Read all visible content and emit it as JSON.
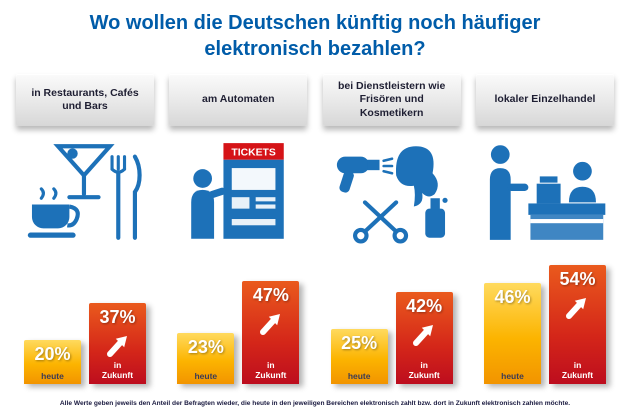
{
  "title": {
    "line1": "Wo wollen die Deutschen künftig noch häufiger",
    "line2": "elektronisch bezahlen?"
  },
  "legend": {
    "today": "heute",
    "future": "in Zukunft"
  },
  "columns": [
    {
      "label": "in Restaurants, Cafés und Bars",
      "today_value": "20%",
      "future_value": "37%"
    },
    {
      "label": "am Automaten",
      "today_value": "23%",
      "future_value": "47%",
      "machine_label": "TICKETS"
    },
    {
      "label": "bei Dienstleistern wie Frisören und Kosmetikern",
      "today_value": "25%",
      "future_value": "42%"
    },
    {
      "label": "lokaler Einzelhandel",
      "today_value": "46%",
      "future_value": "54%"
    }
  ],
  "footnote": "Alle Werte geben jeweils den Anteil der Befragten wieder, die heute in den jeweiligen Bereichen elektronisch zahlt bzw. dort in Zukunft elektronisch zahlen möchte.",
  "chart_data": {
    "type": "bar",
    "title": "Wo wollen die Deutschen künftig noch häufiger elektronisch bezahlen?",
    "categories": [
      "in Restaurants, Cafés und Bars",
      "am Automaten",
      "bei Dienstleistern wie Frisören und Kosmetikern",
      "lokaler Einzelhandel"
    ],
    "series": [
      {
        "name": "heute",
        "values": [
          20,
          23,
          25,
          46
        ]
      },
      {
        "name": "in Zukunft",
        "values": [
          37,
          47,
          42,
          54
        ]
      }
    ],
    "unit": "%",
    "ylim": [
      0,
      60
    ],
    "grid": false,
    "legend_position": "below-bars"
  },
  "colors": {
    "title_blue": "#005CA9",
    "icon_blue": "#1D71B8",
    "sign_red": "#D51317",
    "bar_yellow_top": "#FFDA5E",
    "bar_yellow_bottom": "#F29400",
    "bar_red_top": "#EA5A1D",
    "bar_red_bottom": "#BD0D1E"
  }
}
